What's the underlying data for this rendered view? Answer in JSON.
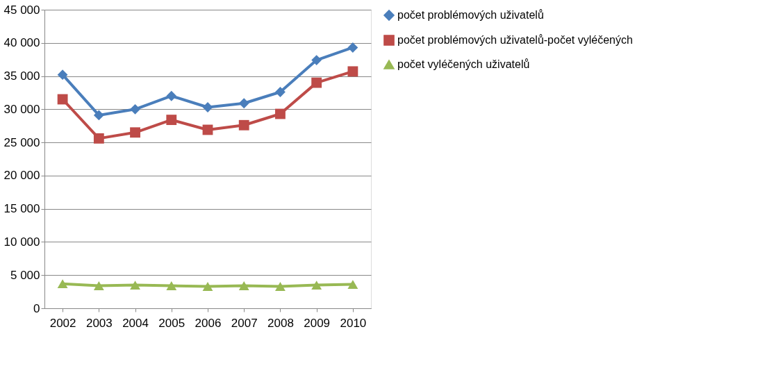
{
  "chart_data": {
    "type": "line",
    "categories": [
      "2002",
      "2003",
      "2004",
      "2005",
      "2006",
      "2007",
      "2008",
      "2009",
      "2010"
    ],
    "series": [
      {
        "name": "počet problémových uživatelů",
        "color": "#4a7ebb",
        "marker": "diamond",
        "values": [
          35200,
          29100,
          30000,
          32000,
          30300,
          30900,
          32600,
          37400,
          39300
        ]
      },
      {
        "name": "počet problémových uživatelů-počet vyléčených",
        "color": "#be4b48",
        "marker": "square",
        "values": [
          31500,
          25600,
          26500,
          28400,
          26900,
          27600,
          29300,
          34000,
          35700
        ]
      },
      {
        "name": "počet vyléčených uživatelů",
        "color": "#98b954",
        "marker": "triangle",
        "values": [
          3700,
          3400,
          3500,
          3400,
          3300,
          3400,
          3300,
          3500,
          3600
        ]
      }
    ],
    "ylim": [
      0,
      45000
    ],
    "yticks": [
      0,
      5000,
      10000,
      15000,
      20000,
      25000,
      30000,
      35000,
      40000,
      45000
    ],
    "grid": "y",
    "legend": "right",
    "line_style": "solid"
  }
}
